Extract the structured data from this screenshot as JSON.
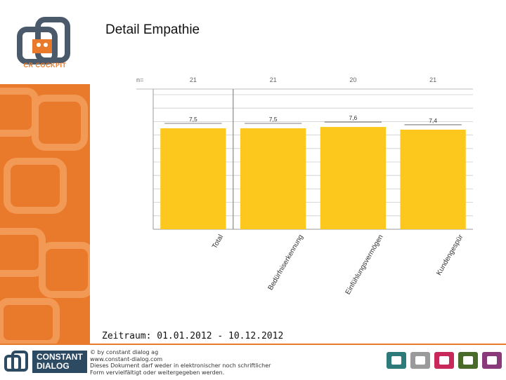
{
  "slide": {
    "title": "Detail Empathie",
    "period": "Zeitraum: 01.01.2012 - 10.12.2012"
  },
  "brand": {
    "logo_text": "CR COCKPIT",
    "company_name_line1": "CONSTANT",
    "company_name_line2": "DIALOG",
    "legal_lines": [
      "© by constant dialog ag",
      "www.constant-dialog.com",
      "Dieses Dokument darf weder in elektronischer noch schriftlicher",
      "Form vervielfältigt oder weitergegeben werden."
    ],
    "accent_color": "#e97a2c",
    "bar_color": "#fcc81e"
  },
  "chart_data": {
    "type": "bar",
    "categories": [
      "Total",
      "Bedürfniserkennung",
      "Einfühlungsvermögen",
      "Kundengespür"
    ],
    "values": [
      7.5,
      7.5,
      7.6,
      7.4
    ],
    "value_labels": [
      "7,5",
      "7,5",
      "7,6",
      "7,4"
    ],
    "n_label": "n=",
    "n_values": [
      "21",
      "21",
      "20",
      "21"
    ],
    "ylim": [
      0,
      10
    ]
  }
}
